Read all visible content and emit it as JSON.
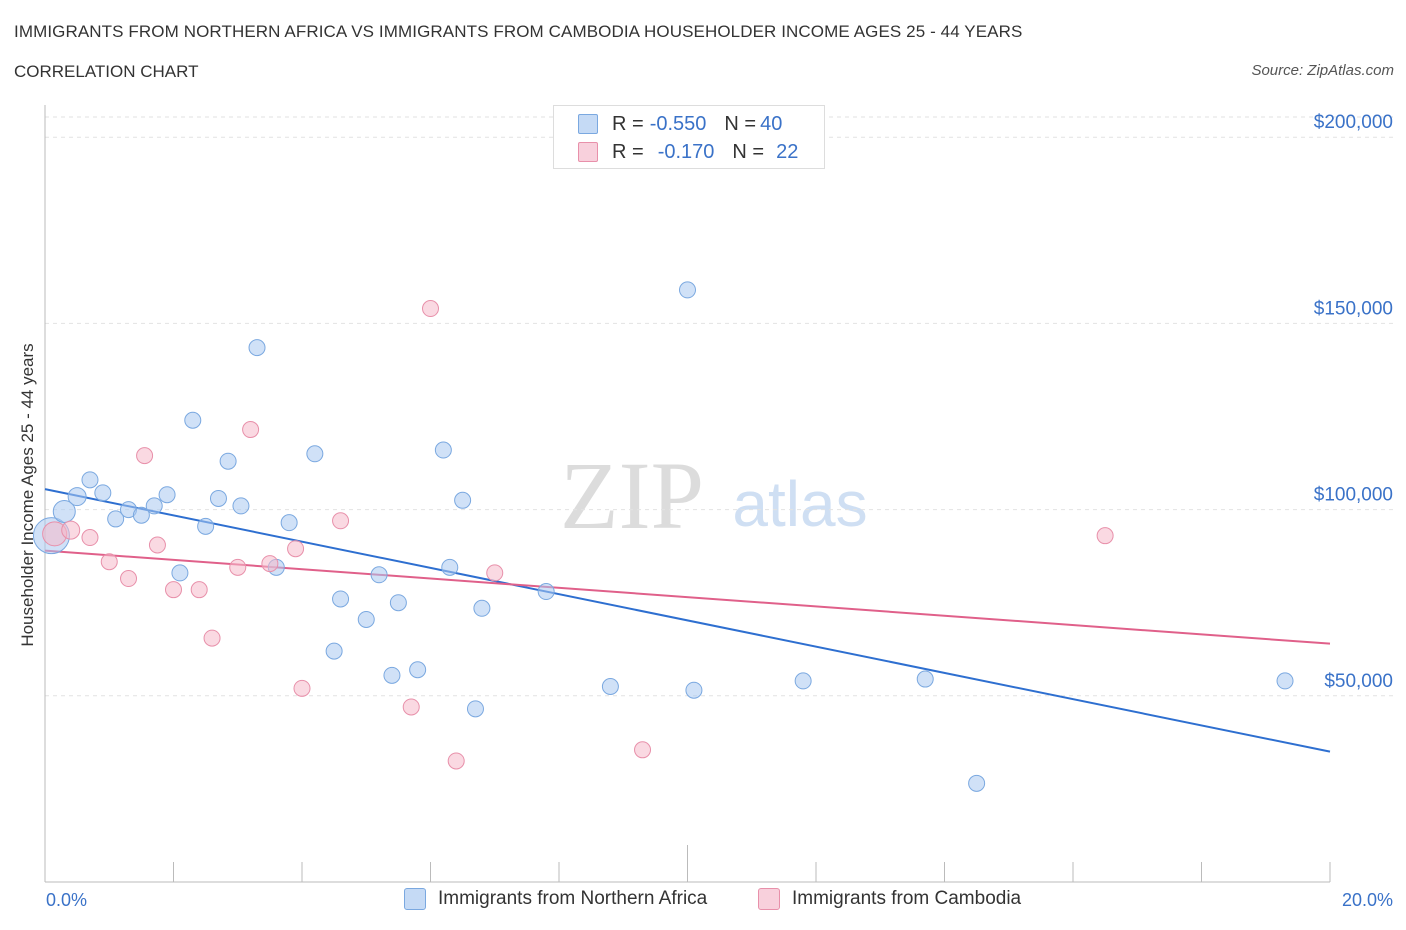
{
  "title": "IMMIGRANTS FROM NORTHERN AFRICA VS IMMIGRANTS FROM CAMBODIA HOUSEHOLDER INCOME AGES 25 - 44 YEARS",
  "subtitle": "CORRELATION CHART",
  "source": "Source: ZipAtlas.com",
  "watermark": {
    "zip": "ZIP",
    "atlas": "atlas"
  },
  "legend": {
    "rows": [
      {
        "r_label": "R = ",
        "r_value": "-0.550",
        "n_label": "N = ",
        "n_value": "40",
        "color": "#a9c8f0"
      },
      {
        "r_label": "R = ",
        "r_value": "-0.170",
        "n_label": "N = ",
        "n_value": "22",
        "color": "#f5b9cb"
      }
    ]
  },
  "chart_data": {
    "type": "scatter",
    "title": "IMMIGRANTS FROM NORTHERN AFRICA VS IMMIGRANTS FROM CAMBODIA HOUSEHOLDER INCOME AGES 25 - 44 YEARS",
    "xlabel": "",
    "ylabel": "Householder Income Ages 25 - 44 years",
    "xlim": [
      0,
      20
    ],
    "ylim": [
      0,
      210000
    ],
    "x_tick_labels": [
      "0.0%",
      "20.0%"
    ],
    "y_ticks": [
      50000,
      100000,
      150000,
      200000
    ],
    "y_tick_labels": [
      "$50,000",
      "$100,000",
      "$150,000",
      "$200,000"
    ],
    "grid": "horizontal dashed",
    "legend_position": "top-center",
    "series": [
      {
        "name": "Immigrants from Northern Africa",
        "color": "#a9c8f0",
        "stroke": "#7aa8e0",
        "line_color": "#2e6fd0",
        "trend": {
          "x": [
            0,
            20
          ],
          "y": [
            105500,
            35000
          ]
        },
        "points": [
          [
            0.1,
            93000,
            18
          ],
          [
            0.3,
            99500,
            11
          ],
          [
            0.5,
            103500,
            9
          ],
          [
            0.7,
            108000,
            8
          ],
          [
            0.9,
            104500,
            8
          ],
          [
            1.1,
            97500,
            8
          ],
          [
            1.3,
            100000,
            8
          ],
          [
            1.5,
            98500,
            8
          ],
          [
            1.7,
            101000,
            8
          ],
          [
            1.9,
            104000,
            8
          ],
          [
            2.1,
            83000,
            8
          ],
          [
            2.3,
            124000,
            8
          ],
          [
            2.5,
            95500,
            8
          ],
          [
            2.7,
            103000,
            8
          ],
          [
            2.85,
            113000,
            8
          ],
          [
            3.05,
            101000,
            8
          ],
          [
            3.3,
            143500,
            8
          ],
          [
            3.6,
            84500,
            8
          ],
          [
            3.8,
            96500,
            8
          ],
          [
            4.2,
            115000,
            8
          ],
          [
            4.5,
            62000,
            8
          ],
          [
            4.6,
            76000,
            8
          ],
          [
            5.0,
            70500,
            8
          ],
          [
            5.2,
            82500,
            8
          ],
          [
            5.4,
            55500,
            8
          ],
          [
            5.5,
            75000,
            8
          ],
          [
            5.8,
            57000,
            8
          ],
          [
            6.2,
            116000,
            8
          ],
          [
            6.3,
            84500,
            8
          ],
          [
            6.5,
            102500,
            8
          ],
          [
            6.7,
            46500,
            8
          ],
          [
            6.8,
            73500,
            8
          ],
          [
            7.8,
            78000,
            8
          ],
          [
            8.8,
            52500,
            8
          ],
          [
            10.0,
            159000,
            8
          ],
          [
            10.1,
            51500,
            8
          ],
          [
            11.8,
            54000,
            8
          ],
          [
            13.7,
            54500,
            8
          ],
          [
            14.5,
            26500,
            8
          ],
          [
            19.3,
            54000,
            8
          ]
        ]
      },
      {
        "name": "Immigrants from Cambodia",
        "color": "#f5b9cb",
        "stroke": "#e890aa",
        "line_color": "#e0608a",
        "trend": {
          "x": [
            0,
            20
          ],
          "y": [
            89000,
            64000
          ]
        },
        "points": [
          [
            0.15,
            93500,
            12
          ],
          [
            0.4,
            94500,
            9
          ],
          [
            0.7,
            92500,
            8
          ],
          [
            1.0,
            86000,
            8
          ],
          [
            1.3,
            81500,
            8
          ],
          [
            1.55,
            114500,
            8
          ],
          [
            1.75,
            90500,
            8
          ],
          [
            2.0,
            78500,
            8
          ],
          [
            2.4,
            78500,
            8
          ],
          [
            2.6,
            65500,
            8
          ],
          [
            3.0,
            84500,
            8
          ],
          [
            3.2,
            121500,
            8
          ],
          [
            3.5,
            85500,
            8
          ],
          [
            3.9,
            89500,
            8
          ],
          [
            4.0,
            52000,
            8
          ],
          [
            4.6,
            97000,
            8
          ],
          [
            5.7,
            47000,
            8
          ],
          [
            6.0,
            154000,
            8
          ],
          [
            6.4,
            32500,
            8
          ],
          [
            7.0,
            83000,
            8
          ],
          [
            9.3,
            35500,
            8
          ],
          [
            16.5,
            93000,
            8
          ]
        ]
      }
    ]
  }
}
